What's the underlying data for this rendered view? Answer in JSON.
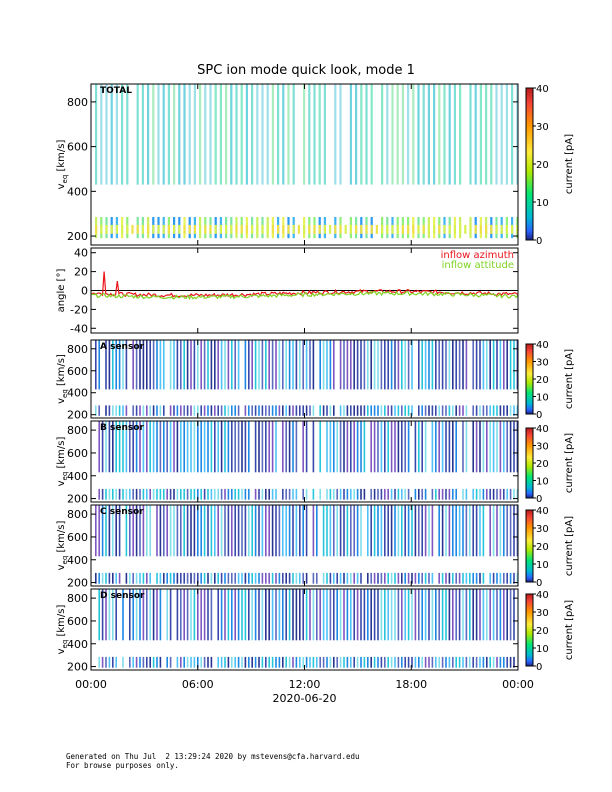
{
  "title": "SPC ion mode quick look, mode 1",
  "chart_data": [
    {
      "type": "heatmap",
      "panel": "TOTAL",
      "label": "TOTAL",
      "ylabel": "v_eq [km/s]",
      "ylabel_main": "v",
      "ylabel_sub": "eq",
      "ylabel_unit": "[km/s]",
      "ylim": [
        160,
        880
      ],
      "yticks": [
        200,
        400,
        600,
        800
      ],
      "colorbar": {
        "label": "current [pA]",
        "range": [
          0,
          40
        ],
        "ticks": [
          0,
          10,
          20,
          30,
          40
        ]
      },
      "bands": [
        [
          190,
          285
        ],
        [
          430,
          880
        ]
      ]
    },
    {
      "type": "line",
      "panel": "angle",
      "ylabel": "angle [°]",
      "ylim": [
        -45,
        45
      ],
      "yticks": [
        -40,
        -20,
        0,
        20,
        40
      ],
      "series": [
        {
          "name": "inflow azimuth",
          "color": "#e8141b",
          "mean": -3
        },
        {
          "name": "inflow attitude",
          "color": "#7ed321",
          "mean": -5
        }
      ]
    },
    {
      "type": "heatmap",
      "panel": "A sensor",
      "label": "A sensor",
      "ylabel": "v_eq [km/s]",
      "ylabel_main": "v",
      "ylabel_sub": "eq",
      "ylabel_unit": "[km/s]",
      "ylim": [
        170,
        880
      ],
      "yticks": [
        200,
        400,
        600,
        800
      ],
      "colorbar": {
        "label": "current [pA]",
        "range": [
          0,
          40
        ],
        "ticks": [
          0,
          10,
          20,
          30,
          40
        ]
      },
      "bands": [
        [
          190,
          285
        ],
        [
          430,
          880
        ]
      ]
    },
    {
      "type": "heatmap",
      "panel": "B sensor",
      "label": "B sensor",
      "ylabel": "v_eq [km/s]",
      "ylabel_main": "v",
      "ylabel_sub": "eq",
      "ylabel_unit": "[km/s]",
      "ylim": [
        170,
        880
      ],
      "yticks": [
        200,
        400,
        600,
        800
      ],
      "colorbar": {
        "label": "current [pA]",
        "range": [
          0,
          40
        ],
        "ticks": [
          0,
          10,
          20,
          30,
          40
        ]
      },
      "bands": [
        [
          190,
          285
        ],
        [
          430,
          880
        ]
      ]
    },
    {
      "type": "heatmap",
      "panel": "C sensor",
      "label": "C sensor",
      "ylabel": "v_eq [km/s]",
      "ylabel_main": "v",
      "ylabel_sub": "eq",
      "ylabel_unit": "[km/s]",
      "ylim": [
        170,
        880
      ],
      "yticks": [
        200,
        400,
        600,
        800
      ],
      "colorbar": {
        "label": "current [pA]",
        "range": [
          0,
          40
        ],
        "ticks": [
          0,
          10,
          20,
          30,
          40
        ]
      },
      "bands": [
        [
          190,
          285
        ],
        [
          430,
          880
        ]
      ]
    },
    {
      "type": "heatmap",
      "panel": "D sensor",
      "label": "D sensor",
      "ylabel": "v_eq [km/s]",
      "ylabel_main": "v",
      "ylabel_sub": "eq",
      "ylabel_unit": "[km/s]",
      "ylim": [
        170,
        880
      ],
      "yticks": [
        200,
        400,
        600,
        800
      ],
      "colorbar": {
        "label": "current [pA]",
        "range": [
          0,
          40
        ],
        "ticks": [
          0,
          10,
          20,
          30,
          40
        ]
      },
      "bands": [
        [
          190,
          285
        ],
        [
          430,
          880
        ]
      ]
    }
  ],
  "x_axis": {
    "range_hours": [
      0,
      24
    ],
    "ticks": [
      0,
      6,
      12,
      18,
      24
    ],
    "tick_labels": [
      "00:00",
      "06:00",
      "12:00",
      "18:00",
      "00:00"
    ],
    "label": "2020-06-20"
  },
  "footer": {
    "line1": "Generated on Thu Jul  2 13:29:24 2020 by mstevens@cfa.harvard.edu",
    "line2": "For browse purposes only."
  }
}
